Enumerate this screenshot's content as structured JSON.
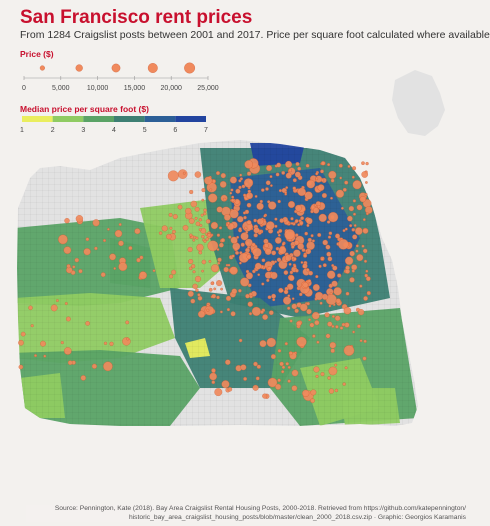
{
  "header": {
    "title": "San Francisco rent prices",
    "subtitle": "From 1284 Craigslist posts between 2001 and 2017. Price per square foot calculated where available"
  },
  "price_legend": {
    "title": "Price ($)",
    "ticks": [
      "0",
      "5,000",
      "10,000",
      "15,000",
      "20,000",
      "25,000"
    ],
    "values": [
      0,
      5000,
      10000,
      15000,
      20000,
      25000
    ],
    "point_color": "#f08a5d"
  },
  "median_legend": {
    "title": "Median price per square foot ($)",
    "ticks": [
      "1",
      "2",
      "3",
      "4",
      "5",
      "6",
      "7"
    ],
    "colors": [
      "#eaee5e",
      "#8fcb62",
      "#5aa366",
      "#3d7f73",
      "#2c5f97",
      "#22449f",
      "#1a2fa8"
    ]
  },
  "map_data": {
    "fill_levels_present": [
      1,
      2,
      3,
      4,
      5,
      6
    ],
    "street_color": "#c9c9c9",
    "land_color": "#e7e7e7",
    "point_count": 1284
  },
  "source": {
    "line1": "Source: Pennington, Kate (2018). Bay Area Craigslist Rental Housing Posts, 2000-2018. Retrieved from https://github.com/katepennington/",
    "line2": "historic_bay_area_craigslist_housing_posts/blob/master/clean_2000_2018.csv.zip · Graphic: Georgios Karamanis"
  }
}
